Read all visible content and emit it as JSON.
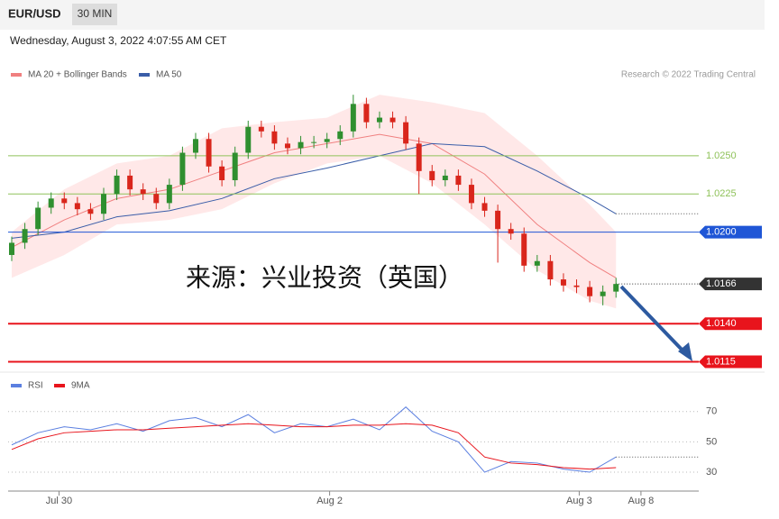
{
  "header": {
    "symbol": "EUR/USD",
    "interval": "30 MIN",
    "date": "Wednesday, August 3, 2022 4:07:55 AM CET"
  },
  "credit": "Research © 2022 Trading Central",
  "watermark": "来源：兴业投资（英国）",
  "xlabels": [
    {
      "label": "Jul 30",
      "index": 3.6
    },
    {
      "label": "Aug 2",
      "index": 24.2
    },
    {
      "label": "Aug 3",
      "index": 43.2
    },
    {
      "label": "Aug 8",
      "index": 47.9
    }
  ],
  "chart_data": [
    {
      "type": "candlestick",
      "up_color": "#2f8f2f",
      "down_color": "#d9261c",
      "open": [
        1.0185,
        1.0193,
        1.0202,
        1.0216,
        1.0222,
        1.0219,
        1.0215,
        1.0212,
        1.0225,
        1.0237,
        1.0228,
        1.0225,
        1.0219,
        1.0231,
        1.0252,
        1.0261,
        1.0243,
        1.0234,
        1.0252,
        1.0269,
        1.0266,
        1.0258,
        1.0255,
        1.0259,
        1.0259,
        1.0261,
        1.0266,
        1.0284,
        1.0272,
        1.0275,
        1.0272,
        1.0258,
        1.024,
        1.0234,
        1.0237,
        1.0231,
        1.0219,
        1.0214,
        1.0202,
        1.0199,
        1.0178,
        1.0181,
        1.0169,
        1.0165,
        1.0164,
        1.0158,
        1.0161
      ],
      "high": [
        1.0197,
        1.0206,
        1.022,
        1.0226,
        1.0226,
        1.0223,
        1.0219,
        1.0229,
        1.0241,
        1.0241,
        1.0232,
        1.0229,
        1.0235,
        1.0256,
        1.0265,
        1.0265,
        1.0247,
        1.0256,
        1.0273,
        1.0273,
        1.027,
        1.0262,
        1.0263,
        1.0263,
        1.0265,
        1.027,
        1.029,
        1.0288,
        1.0279,
        1.0279,
        1.0276,
        1.0262,
        1.0244,
        1.0241,
        1.0241,
        1.0235,
        1.0223,
        1.0218,
        1.0206,
        1.0203,
        1.0185,
        1.0185,
        1.0173,
        1.0169,
        1.0168,
        1.0165,
        1.017
      ],
      "low": [
        1.0181,
        1.0189,
        1.0198,
        1.0212,
        1.0215,
        1.0211,
        1.0208,
        1.0208,
        1.0221,
        1.0224,
        1.0221,
        1.0215,
        1.0215,
        1.0227,
        1.0248,
        1.0239,
        1.023,
        1.023,
        1.0248,
        1.0262,
        1.0254,
        1.0251,
        1.0251,
        1.0255,
        1.0255,
        1.0257,
        1.0262,
        1.0268,
        1.0268,
        1.0268,
        1.0254,
        1.0225,
        1.023,
        1.023,
        1.0227,
        1.0215,
        1.021,
        1.018,
        1.0195,
        1.0174,
        1.0174,
        1.0165,
        1.0161,
        1.016,
        1.0154,
        1.0152,
        1.0157
      ],
      "close": [
        1.0193,
        1.0202,
        1.0216,
        1.0222,
        1.0219,
        1.0215,
        1.0212,
        1.0225,
        1.0237,
        1.0228,
        1.0225,
        1.0219,
        1.0231,
        1.0252,
        1.0261,
        1.0243,
        1.0234,
        1.0252,
        1.0269,
        1.0266,
        1.0258,
        1.0255,
        1.0259,
        1.0259,
        1.0261,
        1.0266,
        1.0284,
        1.0272,
        1.0275,
        1.0272,
        1.0258,
        1.024,
        1.0234,
        1.0237,
        1.0231,
        1.0219,
        1.0214,
        1.0202,
        1.0199,
        1.0178,
        1.0181,
        1.0169,
        1.0165,
        1.0164,
        1.0158,
        1.0161,
        1.0166
      ],
      "ylim": [
        1.0296,
        1.011
      ],
      "indicator_x": [
        0,
        4,
        8,
        12,
        16,
        20,
        24,
        28,
        32,
        36,
        40,
        44,
        46
      ],
      "bands": {
        "name": "MA 20 + Bollinger Bands",
        "color": "#f08080",
        "upper": [
          1.02,
          1.0228,
          1.0245,
          1.025,
          1.0268,
          1.0272,
          1.0275,
          1.029,
          1.0285,
          1.0278,
          1.025,
          1.0218,
          1.02
        ],
        "lower": [
          1.017,
          1.0185,
          1.0205,
          1.0208,
          1.0215,
          1.0232,
          1.0245,
          1.025,
          1.0232,
          1.0205,
          1.0175,
          1.0155,
          1.015
        ],
        "values": [
          1.019,
          1.0208,
          1.0222,
          1.0228,
          1.024,
          1.0252,
          1.0258,
          1.0264,
          1.0258,
          1.0238,
          1.0205,
          1.018,
          1.017
        ]
      },
      "series": [
        {
          "name": "MA 50",
          "color": "#3a5da8",
          "values": [
            1.0196,
            1.02,
            1.021,
            1.0214,
            1.0222,
            1.0235,
            1.0242,
            1.025,
            1.0258,
            1.0256,
            1.024,
            1.0222,
            1.0212
          ]
        }
      ],
      "levels": [
        {
          "value": 1.025,
          "label": "1.0250",
          "color": "#8fc25a",
          "boxed": false
        },
        {
          "value": 1.0225,
          "label": "1.0225",
          "color": "#8fc25a",
          "boxed": false
        },
        {
          "value": 1.02,
          "label": "1.0200",
          "color": "#1f56d6",
          "boxed": true
        },
        {
          "value": 1.0166,
          "label": "1.0166",
          "color": "#333333",
          "boxed": true,
          "dotted": true
        },
        {
          "value": 1.014,
          "label": "1.0140",
          "color": "#e8141c",
          "boxed": true
        },
        {
          "value": 1.0115,
          "label": "1.0115",
          "color": "#e8141c",
          "boxed": true
        }
      ]
    },
    {
      "type": "line",
      "x": [
        0,
        2,
        4,
        6,
        8,
        10,
        12,
        14,
        16,
        18,
        20,
        22,
        24,
        26,
        28,
        30,
        32,
        34,
        36,
        38,
        40,
        42,
        44,
        46
      ],
      "series": [
        {
          "name": "RSI",
          "color": "#5b7fe0",
          "values": [
            48,
            56,
            60,
            58,
            62,
            57,
            64,
            66,
            60,
            68,
            56,
            62,
            60,
            65,
            58,
            73,
            57,
            50,
            30,
            37,
            36,
            32,
            30,
            40
          ]
        },
        {
          "name": "9MA",
          "color": "#e8141c",
          "values": [
            45,
            52,
            56,
            57,
            58,
            58,
            59,
            60,
            61,
            62,
            61,
            60,
            60,
            61,
            61,
            62,
            61,
            56,
            40,
            36,
            35,
            33,
            32,
            33
          ]
        }
      ],
      "ylim": [
        77,
        20.5
      ],
      "yticks": [
        70,
        50,
        30
      ],
      "grid": true
    }
  ]
}
